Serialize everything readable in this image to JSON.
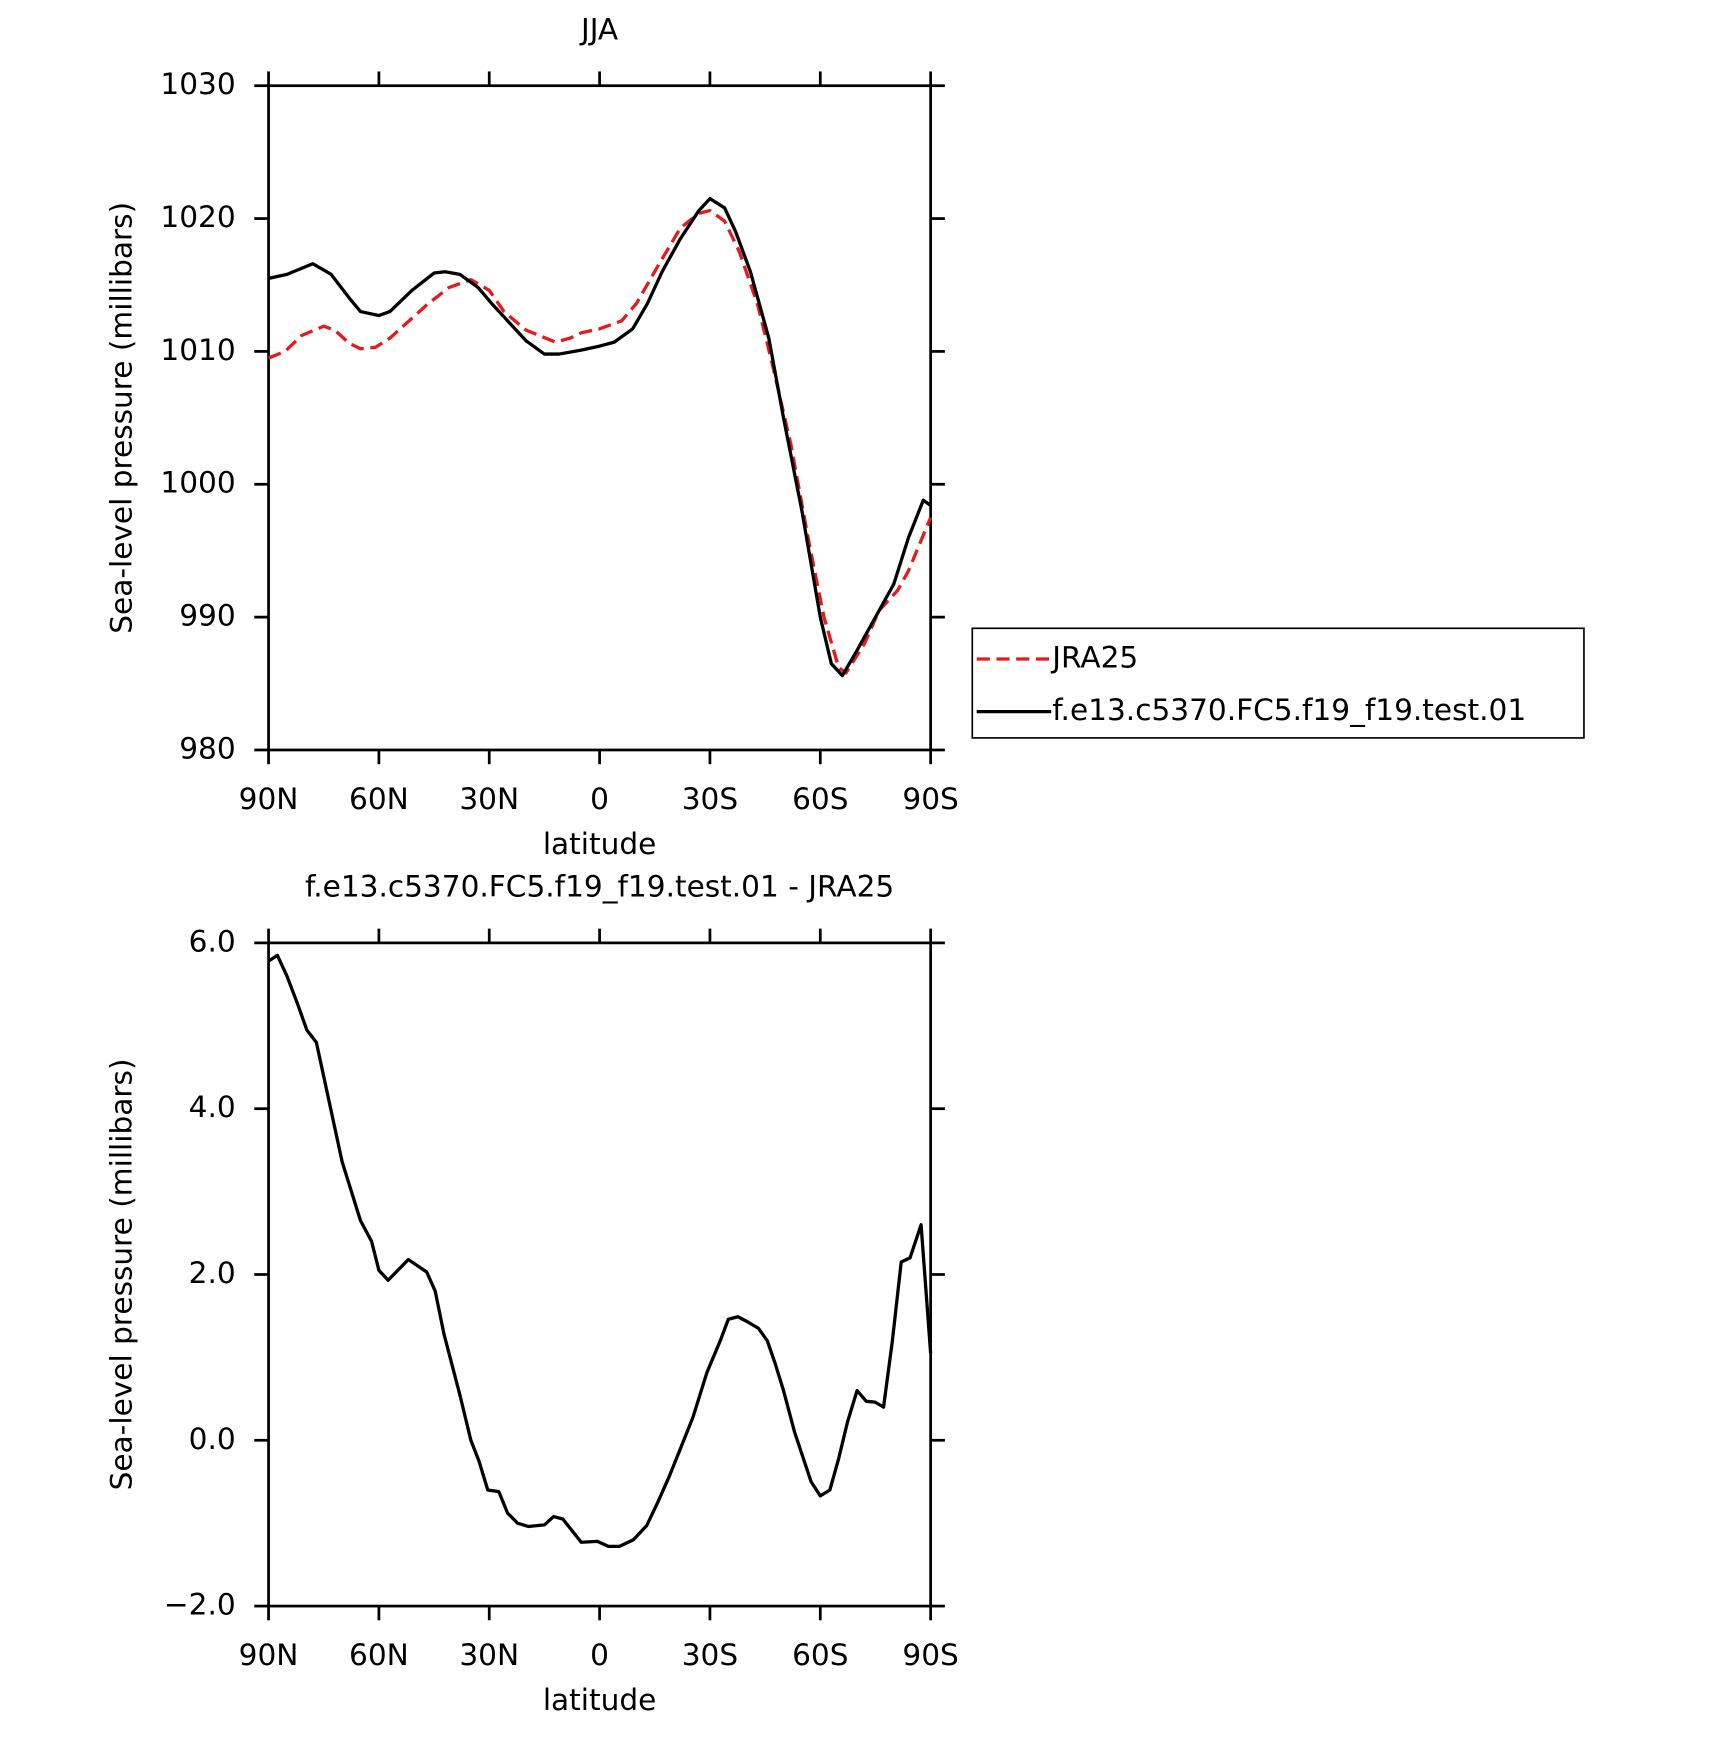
{
  "chart_data": [
    {
      "type": "line",
      "title": "JJA",
      "xlabel": "latitude",
      "ylabel": "Sea-level pressure (millibars)",
      "xlim": [
        90,
        -90
      ],
      "ylim": [
        980,
        1030
      ],
      "xticks": [
        {
          "value": 90,
          "label": "90N"
        },
        {
          "value": 60,
          "label": "60N"
        },
        {
          "value": 30,
          "label": "30N"
        },
        0,
        {
          "value": -30,
          "label": "30S"
        },
        {
          "value": -60,
          "label": "60S"
        },
        {
          "value": -90,
          "label": "90S"
        }
      ],
      "yticks": [
        980,
        990,
        1000,
        1010,
        1020,
        1030
      ],
      "legend": "right",
      "series": [
        {
          "name": "JRA25",
          "color": "#e41a1c",
          "style": "dashed",
          "x": [
            90,
            85.5,
            81,
            75,
            72,
            68,
            65,
            61,
            57,
            53,
            47,
            41,
            35,
            30,
            26,
            20,
            12,
            8,
            5,
            0,
            -6,
            -10,
            -16,
            -22,
            -27,
            -30,
            -34,
            -38,
            -43,
            -47,
            -52,
            -57,
            -61,
            -65,
            -67,
            -72,
            -76,
            -81,
            -84,
            -87,
            -90
          ],
          "values": [
            1009.5,
            1010,
            1011.2,
            1011.9,
            1011.6,
            1010.6,
            1010.2,
            1010.3,
            1011,
            1012,
            1013.5,
            1014.8,
            1015.4,
            1014.6,
            1013,
            1011.6,
            1010.7,
            1011,
            1011.4,
            1011.7,
            1012.3,
            1013.6,
            1016.5,
            1019.3,
            1020.4,
            1020.6,
            1019.8,
            1017.5,
            1013.5,
            1009,
            1003,
            995.5,
            990,
            986.2,
            985.8,
            988,
            990.5,
            992,
            993.5,
            995.5,
            997.5
          ]
        },
        {
          "name": "f.e13.c5370.FC5.f19_f19.test.01",
          "color": "#000000",
          "style": "solid",
          "x": [
            90,
            85,
            78,
            73,
            68,
            65,
            60,
            57,
            51,
            45,
            42,
            38,
            33,
            29,
            24,
            20,
            15,
            11,
            5,
            0,
            -4,
            -9,
            -13,
            -17,
            -22,
            -27,
            -30,
            -34,
            -37,
            -41,
            -46,
            -50,
            -55,
            -60,
            -63,
            -66,
            -70,
            -75,
            -80,
            -84,
            -88,
            -90
          ],
          "values": [
            1015.5,
            1015.8,
            1016.6,
            1015.8,
            1014,
            1013,
            1012.7,
            1013,
            1014.6,
            1015.9,
            1016,
            1015.8,
            1014.8,
            1013.5,
            1012,
            1010.8,
            1009.8,
            1009.8,
            1010.1,
            1010.4,
            1010.7,
            1011.7,
            1013.6,
            1016,
            1018.5,
            1020.6,
            1021.5,
            1020.8,
            1019,
            1016,
            1011,
            1005,
            998,
            990,
            986.5,
            985.6,
            987.5,
            990,
            992.5,
            996,
            998.8,
            998.4
          ]
        }
      ]
    },
    {
      "type": "line",
      "title": "f.e13.c5370.FC5.f19_f19.test.01 - JRA25",
      "xlabel": "latitude",
      "ylabel": "Sea-level pressure (millibars)",
      "xlim": [
        90,
        -90
      ],
      "ylim": [
        -2,
        6
      ],
      "xticks": [
        {
          "value": 90,
          "label": "90N"
        },
        {
          "value": 60,
          "label": "60N"
        },
        {
          "value": 30,
          "label": "30N"
        },
        0,
        {
          "value": -30,
          "label": "30S"
        },
        {
          "value": -60,
          "label": "60S"
        },
        {
          "value": -90,
          "label": "90S"
        }
      ],
      "yticks": [
        {
          "value": -2,
          "label": "−2.0"
        },
        {
          "value": 0,
          "label": "0.0"
        },
        {
          "value": 2,
          "label": "2.0"
        },
        {
          "value": 4,
          "label": "4.0"
        },
        {
          "value": 6,
          "label": "6.0"
        }
      ],
      "color": "#000000",
      "x": [
        90,
        87.6,
        85,
        82,
        79.6,
        77,
        73.6,
        70,
        65,
        62,
        60,
        57.5,
        52,
        47,
        44.7,
        42.3,
        38,
        35,
        32.8,
        30.4,
        27.4,
        25,
        22.3,
        19.4,
        15,
        12.5,
        10,
        5,
        0.6,
        -2.4,
        -5.4,
        -9.2,
        -12.8,
        -15.8,
        -18.8,
        -21.8,
        -25.4,
        -29.2,
        -32.8,
        -35,
        -37.6,
        -40.2,
        -43.2,
        -45.6,
        -47.7,
        -50,
        -53,
        -55.4,
        -57.5,
        -60,
        -62.6,
        -65,
        -67.4,
        -70,
        -72.5,
        -74.9,
        -77.2,
        -79.6,
        -82,
        -84.4,
        -87.4,
        -90
      ],
      "values": [
        5.78,
        5.85,
        5.6,
        5.25,
        4.95,
        4.8,
        4.1,
        3.36,
        2.65,
        2.4,
        2.05,
        1.93,
        2.18,
        2.03,
        1.8,
        1.28,
        0.55,
        0.0,
        -0.25,
        -0.6,
        -0.62,
        -0.88,
        -1.0,
        -1.04,
        -1.02,
        -0.92,
        -0.95,
        -1.23,
        -1.22,
        -1.28,
        -1.28,
        -1.2,
        -1.03,
        -0.75,
        -0.45,
        -0.12,
        0.28,
        0.82,
        1.2,
        1.46,
        1.49,
        1.43,
        1.35,
        1.2,
        0.93,
        0.6,
        0.1,
        -0.22,
        -0.5,
        -0.67,
        -0.6,
        -0.22,
        0.22,
        0.6,
        0.47,
        0.46,
        0.4,
        1.2,
        2.15,
        2.2,
        2.6,
        1.05
      ]
    }
  ]
}
